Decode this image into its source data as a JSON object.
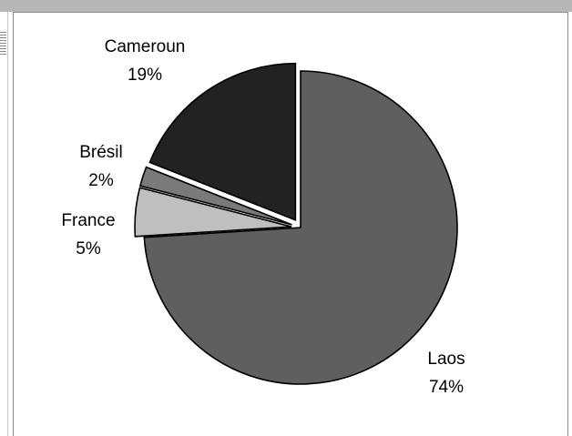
{
  "chart_data": {
    "type": "pie",
    "title": "",
    "categories": [
      "Laos",
      "France",
      "Brésil",
      "Cameroun"
    ],
    "values": [
      74,
      5,
      2,
      19
    ],
    "labels": [
      {
        "name": "Laos",
        "pct": "74%"
      },
      {
        "name": "France",
        "pct": "5%"
      },
      {
        "name": "Brésil",
        "pct": "2%"
      },
      {
        "name": "Cameroun",
        "pct": "19%"
      }
    ],
    "colors": [
      "#5f5f5f",
      "#bfbfbf",
      "#7a7a7a",
      "#222222"
    ],
    "legend": "none",
    "exploded": true
  }
}
